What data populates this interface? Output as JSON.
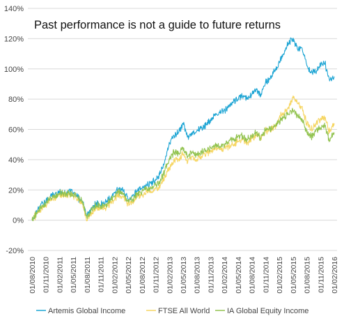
{
  "chart_data": {
    "type": "line",
    "title": "Past performance is not a guide to future returns",
    "xlabel": "",
    "ylabel": "",
    "ylim": [
      -0.2,
      1.4
    ],
    "y_ticks": [
      "-20%",
      "0%",
      "20%",
      "40%",
      "60%",
      "80%",
      "100%",
      "120%",
      "140%"
    ],
    "x_tick_labels": [
      "01/08/2010",
      "01/11/2010",
      "01/02/2011",
      "01/05/2011",
      "01/08/2011",
      "01/11/2011",
      "01/02/2012",
      "01/05/2012",
      "01/08/2012",
      "01/11/2012",
      "01/02/2013",
      "01/05/2013",
      "01/08/2013",
      "01/11/2013",
      "01/02/2014",
      "01/05/2014",
      "01/08/2014",
      "01/11/2014",
      "01/02/2015",
      "01/05/2015",
      "01/08/2015",
      "01/11/2015",
      "01/02/2016"
    ],
    "grid": "horizontal",
    "legend_position": "bottom",
    "series": [
      {
        "name": "Artemis Global Income",
        "color": "#1ea5d4",
        "x": [
          "2010-08-01",
          "2010-09-01",
          "2010-10-01",
          "2010-11-01",
          "2010-12-01",
          "2011-01-01",
          "2011-02-01",
          "2011-03-01",
          "2011-04-01",
          "2011-05-01",
          "2011-06-01",
          "2011-07-01",
          "2011-08-01",
          "2011-09-01",
          "2011-10-01",
          "2011-11-01",
          "2011-12-01",
          "2012-01-01",
          "2012-02-01",
          "2012-03-01",
          "2012-04-01",
          "2012-05-01",
          "2012-06-01",
          "2012-07-01",
          "2012-08-01",
          "2012-09-01",
          "2012-10-01",
          "2012-11-01",
          "2012-12-01",
          "2013-01-01",
          "2013-02-01",
          "2013-03-01",
          "2013-04-01",
          "2013-05-01",
          "2013-06-01",
          "2013-07-01",
          "2013-08-01",
          "2013-09-01",
          "2013-10-01",
          "2013-11-01",
          "2013-12-01",
          "2014-01-01",
          "2014-02-01",
          "2014-03-01",
          "2014-04-01",
          "2014-05-01",
          "2014-06-01",
          "2014-07-01",
          "2014-08-01",
          "2014-09-01",
          "2014-10-01",
          "2014-11-01",
          "2014-12-01",
          "2015-01-01",
          "2015-02-01",
          "2015-03-01",
          "2015-04-01",
          "2015-05-01",
          "2015-06-01",
          "2015-07-01",
          "2015-08-01",
          "2015-09-01",
          "2015-10-01",
          "2015-11-01",
          "2015-12-01",
          "2016-01-01",
          "2016-02-01"
        ],
        "values": [
          0.0,
          0.06,
          0.11,
          0.12,
          0.16,
          0.17,
          0.19,
          0.17,
          0.19,
          0.18,
          0.15,
          0.12,
          0.03,
          0.08,
          0.11,
          0.1,
          0.12,
          0.14,
          0.18,
          0.21,
          0.19,
          0.14,
          0.16,
          0.19,
          0.21,
          0.23,
          0.24,
          0.27,
          0.31,
          0.4,
          0.51,
          0.56,
          0.58,
          0.64,
          0.55,
          0.58,
          0.59,
          0.61,
          0.63,
          0.66,
          0.69,
          0.71,
          0.73,
          0.75,
          0.78,
          0.8,
          0.82,
          0.81,
          0.83,
          0.87,
          0.82,
          0.91,
          0.93,
          0.99,
          1.04,
          1.1,
          1.17,
          1.2,
          1.13,
          1.14,
          1.03,
          0.98,
          0.98,
          1.03,
          1.04,
          0.92,
          0.95
        ]
      },
      {
        "name": "FTSE All World",
        "color": "#f6d663",
        "x": [
          "2010-08-01",
          "2010-09-01",
          "2010-10-01",
          "2010-11-01",
          "2010-12-01",
          "2011-01-01",
          "2011-02-01",
          "2011-03-01",
          "2011-04-01",
          "2011-05-01",
          "2011-06-01",
          "2011-07-01",
          "2011-08-01",
          "2011-09-01",
          "2011-10-01",
          "2011-11-01",
          "2011-12-01",
          "2012-01-01",
          "2012-02-01",
          "2012-03-01",
          "2012-04-01",
          "2012-05-01",
          "2012-06-01",
          "2012-07-01",
          "2012-08-01",
          "2012-09-01",
          "2012-10-01",
          "2012-11-01",
          "2012-12-01",
          "2013-01-01",
          "2013-02-01",
          "2013-03-01",
          "2013-04-01",
          "2013-05-01",
          "2013-06-01",
          "2013-07-01",
          "2013-08-01",
          "2013-09-01",
          "2013-10-01",
          "2013-11-01",
          "2013-12-01",
          "2014-01-01",
          "2014-02-01",
          "2014-03-01",
          "2014-04-01",
          "2014-05-01",
          "2014-06-01",
          "2014-07-01",
          "2014-08-01",
          "2014-09-01",
          "2014-10-01",
          "2014-11-01",
          "2014-12-01",
          "2015-01-01",
          "2015-02-01",
          "2015-03-01",
          "2015-04-01",
          "2015-05-01",
          "2015-06-01",
          "2015-07-01",
          "2015-08-01",
          "2015-09-01",
          "2015-10-01",
          "2015-11-01",
          "2015-12-01",
          "2016-01-01",
          "2016-02-01"
        ],
        "values": [
          0.0,
          0.04,
          0.08,
          0.1,
          0.14,
          0.15,
          0.17,
          0.16,
          0.17,
          0.16,
          0.14,
          0.11,
          0.0,
          0.05,
          0.08,
          0.07,
          0.08,
          0.11,
          0.14,
          0.17,
          0.15,
          0.11,
          0.12,
          0.15,
          0.17,
          0.19,
          0.19,
          0.21,
          0.23,
          0.29,
          0.35,
          0.4,
          0.4,
          0.44,
          0.38,
          0.42,
          0.4,
          0.42,
          0.44,
          0.46,
          0.47,
          0.47,
          0.48,
          0.49,
          0.5,
          0.52,
          0.53,
          0.51,
          0.54,
          0.57,
          0.53,
          0.59,
          0.59,
          0.62,
          0.68,
          0.71,
          0.74,
          0.81,
          0.77,
          0.75,
          0.64,
          0.6,
          0.64,
          0.67,
          0.68,
          0.58,
          0.64
        ]
      },
      {
        "name": "IA Global Equity Income",
        "color": "#92c350",
        "x": [
          "2010-08-01",
          "2010-09-01",
          "2010-10-01",
          "2010-11-01",
          "2010-12-01",
          "2011-01-01",
          "2011-02-01",
          "2011-03-01",
          "2011-04-01",
          "2011-05-01",
          "2011-06-01",
          "2011-07-01",
          "2011-08-01",
          "2011-09-01",
          "2011-10-01",
          "2011-11-01",
          "2011-12-01",
          "2012-01-01",
          "2012-02-01",
          "2012-03-01",
          "2012-04-01",
          "2012-05-01",
          "2012-06-01",
          "2012-07-01",
          "2012-08-01",
          "2012-09-01",
          "2012-10-01",
          "2012-11-01",
          "2012-12-01",
          "2013-01-01",
          "2013-02-01",
          "2013-03-01",
          "2013-04-01",
          "2013-05-01",
          "2013-06-01",
          "2013-07-01",
          "2013-08-01",
          "2013-09-01",
          "2013-10-01",
          "2013-11-01",
          "2013-12-01",
          "2014-01-01",
          "2014-02-01",
          "2014-03-01",
          "2014-04-01",
          "2014-05-01",
          "2014-06-01",
          "2014-07-01",
          "2014-08-01",
          "2014-09-01",
          "2014-10-01",
          "2014-11-01",
          "2014-12-01",
          "2015-01-01",
          "2015-02-01",
          "2015-03-01",
          "2015-04-01",
          "2015-05-01",
          "2015-06-01",
          "2015-07-01",
          "2015-08-01",
          "2015-09-01",
          "2015-10-01",
          "2015-11-01",
          "2015-12-01",
          "2016-01-01",
          "2016-02-01"
        ],
        "values": [
          0.0,
          0.05,
          0.09,
          0.11,
          0.15,
          0.16,
          0.18,
          0.17,
          0.18,
          0.17,
          0.15,
          0.12,
          0.02,
          0.07,
          0.1,
          0.09,
          0.1,
          0.13,
          0.16,
          0.19,
          0.17,
          0.13,
          0.14,
          0.17,
          0.19,
          0.21,
          0.21,
          0.23,
          0.26,
          0.33,
          0.4,
          0.45,
          0.44,
          0.48,
          0.42,
          0.45,
          0.43,
          0.45,
          0.46,
          0.48,
          0.49,
          0.49,
          0.5,
          0.52,
          0.53,
          0.55,
          0.56,
          0.53,
          0.55,
          0.58,
          0.54,
          0.6,
          0.6,
          0.62,
          0.65,
          0.68,
          0.7,
          0.73,
          0.69,
          0.67,
          0.58,
          0.55,
          0.59,
          0.61,
          0.62,
          0.53,
          0.58
        ]
      }
    ]
  }
}
